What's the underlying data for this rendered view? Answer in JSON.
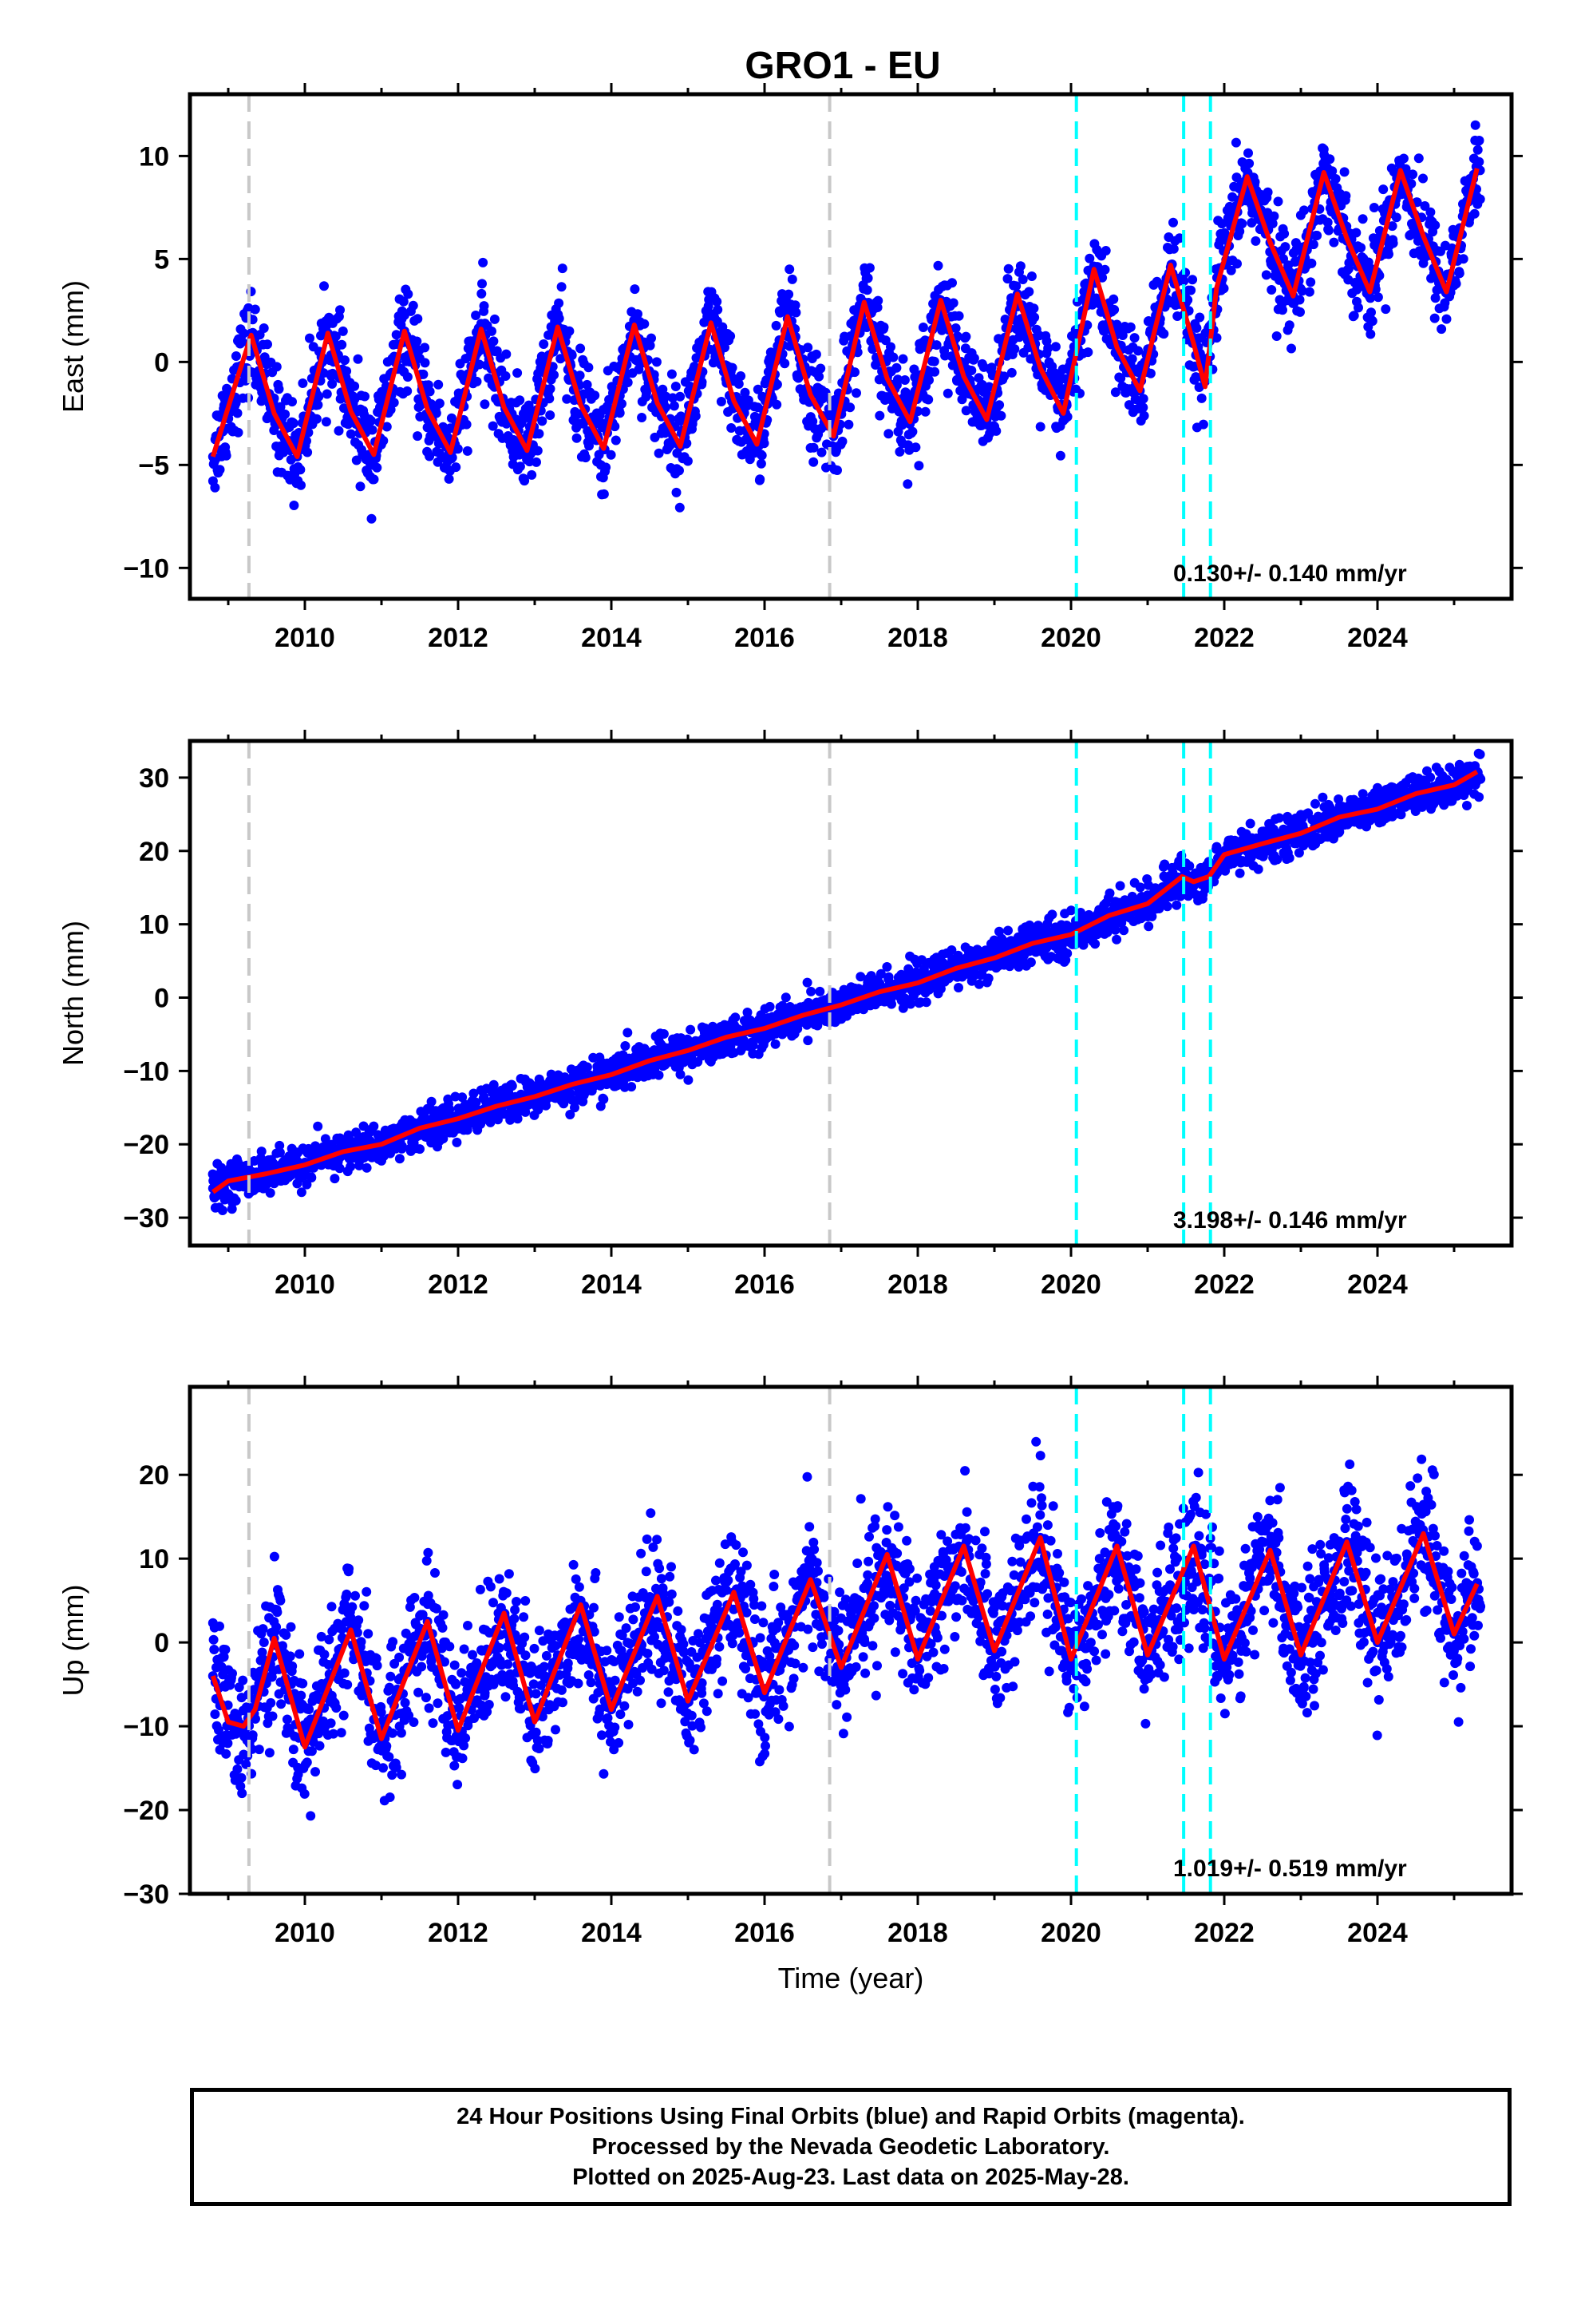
{
  "title": "GRO1 - EU",
  "chart_data": [
    {
      "type": "scatter",
      "component": "East",
      "ylabel": "East (mm)",
      "xlabel": "",
      "xlim": [
        2008.5,
        2025.75
      ],
      "ylim": [
        -11.5,
        13.0
      ],
      "xticks": [
        2010,
        2012,
        2014,
        2016,
        2018,
        2020,
        2022,
        2024
      ],
      "yticks": [
        -10,
        -5,
        0,
        5,
        10
      ],
      "grid": false,
      "velocity_label": "0.130+/- 0.140 mm/yr",
      "dashed_lines": {
        "gray": [
          2009.27,
          2016.85
        ],
        "cyan": [
          2020.07,
          2021.47,
          2021.82
        ]
      },
      "series": [
        {
          "name": "",
          "kind": "scatter",
          "color": "#0000ff",
          "x": [
            2008.8,
            2009.1,
            2009.3,
            2009.6,
            2009.9,
            2010.3,
            2010.6,
            2010.9,
            2011.3,
            2011.6,
            2011.9,
            2012.3,
            2012.6,
            2012.9,
            2013.3,
            2013.6,
            2013.9,
            2014.3,
            2014.6,
            2014.9,
            2015.3,
            2015.6,
            2015.9,
            2016.3,
            2016.6,
            2016.9,
            2017.3,
            2017.6,
            2017.9,
            2018.3,
            2018.6,
            2018.9,
            2019.3,
            2019.6,
            2019.9,
            2020.3,
            2020.6,
            2020.9,
            2021.3,
            2021.6,
            2021.9,
            2022.3,
            2022.6,
            2022.9,
            2023.3,
            2023.6,
            2023.9,
            2024.3,
            2024.6,
            2024.9,
            2025.3
          ],
          "y": [
            -4.6,
            -2.0,
            1.4,
            -2.2,
            -4.6,
            1.4,
            -2.1,
            -4.4,
            1.5,
            -2.0,
            -4.3,
            1.6,
            -2.0,
            -4.2,
            1.7,
            -1.9,
            -4.2,
            1.7,
            -1.8,
            -4.1,
            1.9,
            -1.7,
            -3.9,
            2.1,
            -1.5,
            -3.6,
            2.9,
            -0.8,
            -2.9,
            3.0,
            -0.6,
            -2.8,
            3.3,
            -0.2,
            -2.5,
            4.4,
            0.8,
            -1.4,
            4.6,
            0.9,
            3.4,
            9.0,
            5.8,
            3.2,
            9.2,
            6.0,
            3.4,
            9.3,
            6.1,
            3.4,
            9.4
          ]
        },
        {
          "name": "",
          "kind": "line",
          "color": "#ff0000",
          "x": [
            2008.8,
            2009.1,
            2009.3,
            2009.6,
            2009.9,
            2010.3,
            2010.6,
            2010.9,
            2011.3,
            2011.6,
            2011.9,
            2012.3,
            2012.6,
            2012.9,
            2013.3,
            2013.6,
            2013.9,
            2014.3,
            2014.6,
            2014.9,
            2015.3,
            2015.6,
            2015.9,
            2016.3,
            2016.6,
            2016.9,
            2017.3,
            2017.6,
            2017.9,
            2018.3,
            2018.6,
            2018.9,
            2019.3,
            2019.6,
            2019.9,
            2020.3,
            2020.6,
            2020.9,
            2021.3,
            2021.6,
            2021.75,
            2021.9,
            2022.3,
            2022.6,
            2022.9,
            2023.3,
            2023.6,
            2023.9,
            2024.3,
            2024.6,
            2024.9,
            2025.3
          ],
          "y": [
            -4.6,
            -1.0,
            1.3,
            -2.5,
            -4.6,
            1.4,
            -2.4,
            -4.5,
            1.5,
            -2.3,
            -4.4,
            1.6,
            -2.2,
            -4.3,
            1.7,
            -2.1,
            -4.2,
            1.8,
            -2.0,
            -4.1,
            1.9,
            -1.9,
            -4.0,
            2.2,
            -1.6,
            -3.6,
            2.9,
            -0.8,
            -2.9,
            3.0,
            -0.7,
            -2.8,
            3.3,
            -0.3,
            -2.5,
            4.5,
            0.7,
            -1.4,
            4.7,
            0.9,
            -1.2,
            3.6,
            9.0,
            5.8,
            3.2,
            9.2,
            6.0,
            3.4,
            9.3,
            6.1,
            3.4,
            9.4
          ]
        }
      ]
    },
    {
      "type": "scatter",
      "component": "North",
      "ylabel": "North (mm)",
      "xlabel": "",
      "xlim": [
        2008.5,
        2025.75
      ],
      "ylim": [
        -33.8,
        35.0
      ],
      "xticks": [
        2010,
        2012,
        2014,
        2016,
        2018,
        2020,
        2022,
        2024
      ],
      "yticks": [
        -30,
        -20,
        -10,
        0,
        10,
        20,
        30
      ],
      "grid": false,
      "velocity_label": "3.198+/- 0.146 mm/yr",
      "dashed_lines": {
        "gray": [
          2009.27,
          2016.85
        ],
        "cyan": [
          2020.07,
          2021.47,
          2021.82
        ]
      },
      "series": [
        {
          "name": "",
          "kind": "scatter",
          "color": "#0000ff",
          "x": [
            2008.8,
            2009.5,
            2010.0,
            2010.5,
            2011.0,
            2011.5,
            2012.0,
            2012.5,
            2013.0,
            2013.5,
            2014.0,
            2014.5,
            2015.0,
            2015.5,
            2016.0,
            2016.5,
            2017.0,
            2017.5,
            2018.0,
            2018.5,
            2019.0,
            2019.5,
            2020.0,
            2020.5,
            2021.0,
            2021.4,
            2021.8,
            2022.3,
            2022.8,
            2023.3,
            2023.8,
            2024.3,
            2024.8,
            2025.3
          ],
          "y": [
            -26.0,
            -24.0,
            -22.5,
            -20.5,
            -19.5,
            -17.0,
            -16.0,
            -14.0,
            -13.0,
            -11.0,
            -10.0,
            -8.0,
            -7.0,
            -5.0,
            -4.0,
            -1.5,
            -0.5,
            1.5,
            2.5,
            4.5,
            5.5,
            8.0,
            9.0,
            11.5,
            13.5,
            16.0,
            17.5,
            20.5,
            22.0,
            24.0,
            25.5,
            27.5,
            28.5,
            30.5
          ]
        },
        {
          "name": "",
          "kind": "line",
          "color": "#ff0000",
          "x": [
            2008.8,
            2009.0,
            2009.5,
            2010.0,
            2010.5,
            2011.0,
            2011.5,
            2012.0,
            2012.5,
            2013.0,
            2013.5,
            2014.0,
            2014.5,
            2015.0,
            2015.5,
            2016.0,
            2016.5,
            2017.0,
            2017.5,
            2018.0,
            2018.5,
            2019.0,
            2019.5,
            2020.0,
            2020.5,
            2021.0,
            2021.45,
            2021.6,
            2021.8,
            2022.0,
            2022.5,
            2023.0,
            2023.5,
            2024.0,
            2024.5,
            2025.0,
            2025.3
          ],
          "y": [
            -26.5,
            -25.0,
            -24.0,
            -22.8,
            -21.0,
            -20.0,
            -17.8,
            -16.5,
            -14.8,
            -13.5,
            -11.8,
            -10.5,
            -8.6,
            -7.2,
            -5.4,
            -4.2,
            -2.4,
            -1.0,
            0.8,
            2.0,
            4.0,
            5.4,
            7.4,
            8.6,
            11.2,
            12.8,
            16.5,
            15.8,
            16.5,
            19.5,
            21.0,
            22.4,
            24.6,
            25.7,
            27.8,
            29.0,
            30.8
          ]
        }
      ]
    },
    {
      "type": "scatter",
      "component": "Up",
      "ylabel": "Up (mm)",
      "xlabel": "Time (year)",
      "xlim": [
        2008.5,
        2025.75
      ],
      "ylim": [
        -30.0,
        30.5
      ],
      "xticks": [
        2010,
        2012,
        2014,
        2016,
        2018,
        2020,
        2022,
        2024
      ],
      "yticks": [
        -30,
        -20,
        -10,
        0,
        10,
        20
      ],
      "grid": false,
      "velocity_label": "1.019+/- 0.519 mm/yr",
      "dashed_lines": {
        "gray": [
          2009.27,
          2016.85
        ],
        "cyan": [
          2020.07,
          2021.47,
          2021.82
        ]
      },
      "series": [
        {
          "name": "",
          "kind": "scatter",
          "color": "#0000ff",
          "x": [
            2008.8,
            2009.2,
            2009.6,
            2010.0,
            2010.6,
            2011.0,
            2011.6,
            2012.0,
            2012.6,
            2013.0,
            2013.6,
            2014.0,
            2014.6,
            2015.0,
            2015.6,
            2016.0,
            2016.6,
            2017.0,
            2017.6,
            2018.0,
            2018.6,
            2019.0,
            2019.6,
            2020.0,
            2020.6,
            2021.0,
            2021.6,
            2022.0,
            2022.6,
            2023.0,
            2023.6,
            2024.0,
            2024.6,
            2025.0,
            2025.3
          ],
          "y": [
            -4.0,
            -10.0,
            0.5,
            -12.0,
            1.5,
            -11.0,
            2.5,
            -10.5,
            3.5,
            -9.0,
            4.5,
            -8.0,
            5.5,
            -7.0,
            6.0,
            -6.0,
            7.5,
            -3.0,
            10.5,
            -2.0,
            11.5,
            -1.0,
            12.5,
            -2.0,
            11.5,
            -1.5,
            11.5,
            -2.0,
            11.0,
            -1.5,
            12.0,
            0.0,
            13.0,
            1.0,
            7.0
          ]
        },
        {
          "name": "",
          "kind": "line",
          "color": "#ff0000",
          "x": [
            2008.8,
            2009.0,
            2009.2,
            2009.35,
            2009.6,
            2010.0,
            2010.6,
            2011.0,
            2011.6,
            2012.0,
            2012.6,
            2013.0,
            2013.6,
            2014.0,
            2014.6,
            2015.0,
            2015.6,
            2016.0,
            2016.6,
            2017.0,
            2017.6,
            2018.0,
            2018.6,
            2019.0,
            2019.6,
            2020.0,
            2020.6,
            2021.0,
            2021.6,
            2022.0,
            2022.6,
            2023.0,
            2023.6,
            2024.0,
            2024.6,
            2025.0,
            2025.3
          ],
          "y": [
            -4.0,
            -9.5,
            -10.0,
            -8.0,
            0.5,
            -12.5,
            1.5,
            -11.5,
            2.5,
            -10.5,
            3.5,
            -9.5,
            4.5,
            -8.0,
            5.5,
            -7.0,
            6.0,
            -6.0,
            7.5,
            -3.0,
            10.5,
            -2.0,
            11.5,
            -1.0,
            12.5,
            -2.0,
            11.5,
            -1.5,
            11.5,
            -2.0,
            11.0,
            -1.5,
            12.0,
            0.0,
            13.0,
            1.0,
            7.0
          ]
        }
      ]
    }
  ],
  "caption": {
    "line1": "24 Hour Positions Using Final Orbits (blue) and Rapid Orbits (magenta).",
    "line2": "Processed by the Nevada Geodetic Laboratory.",
    "line3": "Plotted on 2025-Aug-23. Last data on 2025-May-28."
  }
}
